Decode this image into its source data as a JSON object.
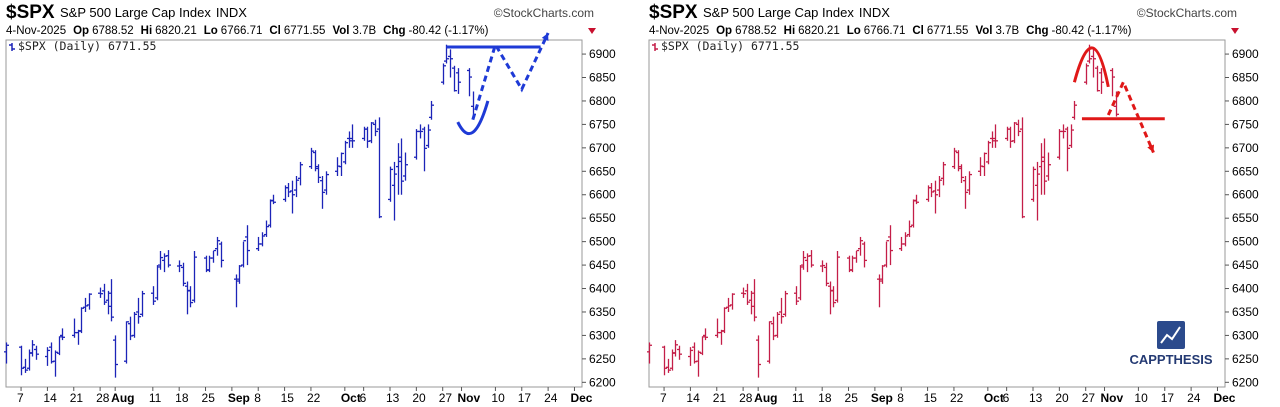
{
  "charts": [
    {
      "id": "left",
      "header": {
        "symbol": "$SPX",
        "name": "S&P 500 Large Cap Index",
        "exchange": "INDX",
        "source": "©StockCharts.com",
        "date": "4-Nov-2025",
        "op_label": "Op",
        "op": "6788.52",
        "hi_label": "Hi",
        "hi": "6820.21",
        "lo_label": "Lo",
        "lo": "6766.71",
        "cl_label": "Cl",
        "cl": "6771.55",
        "vol_label": "Vol",
        "vol": "3.7B",
        "chg_label": "Chg",
        "chg": "-80.42 (-1.17%)"
      },
      "legend": "$SPX (Daily) 6771.55",
      "bar_color": "#1c24b8",
      "annotation_color": "#1e3ad6",
      "annotations": {
        "resistance_level": 6915,
        "resistance_from": "2025-10-28",
        "resistance_to": "2025-11-22",
        "pattern": "cup",
        "cup_start": [
          "2025-10-31",
          6755
        ],
        "cup_bottom": [
          "2025-11-04",
          6740
        ],
        "cup_end": [
          "2025-11-08",
          6800
        ],
        "path": [
          [
            "2025-11-04",
            6760
          ],
          [
            "2025-11-10",
            6920
          ],
          [
            "2025-11-17",
            6825
          ],
          [
            "2025-11-24",
            6945
          ]
        ]
      }
    },
    {
      "id": "right",
      "header": {
        "symbol": "$SPX",
        "name": "S&P 500 Large Cap Index",
        "exchange": "INDX",
        "source": "©StockCharts.com",
        "date": "4-Nov-2025",
        "op_label": "Op",
        "op": "6788.52",
        "hi_label": "Hi",
        "hi": "6820.21",
        "lo_label": "Lo",
        "lo": "6766.71",
        "cl_label": "Cl",
        "cl": "6771.55",
        "vol_label": "Vol",
        "vol": "3.7B",
        "chg_label": "Chg",
        "chg": "-80.42 (-1.17%)"
      },
      "legend": "$SPX (Daily) 6771.55",
      "bar_color": "#c41e48",
      "annotation_color": "#e01818",
      "annotations": {
        "support_level": 6762,
        "support_from": "2025-10-26",
        "support_to": "2025-11-17",
        "pattern": "arch",
        "arch_start": [
          "2025-10-24",
          6840
        ],
        "arch_top": [
          "2025-10-29",
          6940
        ],
        "arch_end": [
          "2025-11-02",
          6830
        ],
        "path": [
          [
            "2025-11-02",
            6770
          ],
          [
            "2025-11-06",
            6840
          ],
          [
            "2025-11-14",
            6690
          ]
        ]
      },
      "logo": {
        "text": "CAPPTHESIS"
      }
    }
  ],
  "chart_data": {
    "type": "ohlc",
    "title": "$SPX S&P 500 Large Cap Index INDX",
    "series_label": "$SPX (Daily) 6771.55",
    "ylim": [
      6190,
      6930
    ],
    "y_ticks": [
      6200,
      6250,
      6300,
      6350,
      6400,
      6450,
      6500,
      6550,
      6600,
      6650,
      6700,
      6750,
      6800,
      6850,
      6900
    ],
    "x_range": [
      "2025-07-03",
      "2025-12-03"
    ],
    "x_ticks": [
      {
        "label": "7",
        "date": "2025-07-07",
        "month": false
      },
      {
        "label": "14",
        "date": "2025-07-14",
        "month": false
      },
      {
        "label": "21",
        "date": "2025-07-21",
        "month": false
      },
      {
        "label": "28",
        "date": "2025-07-28",
        "month": false
      },
      {
        "label": "Aug",
        "date": "2025-08-01",
        "month": true
      },
      {
        "label": "11",
        "date": "2025-08-11",
        "month": false
      },
      {
        "label": "18",
        "date": "2025-08-18",
        "month": false
      },
      {
        "label": "25",
        "date": "2025-08-25",
        "month": false
      },
      {
        "label": "Sep",
        "date": "2025-09-01",
        "month": true
      },
      {
        "label": "8",
        "date": "2025-09-08",
        "month": false
      },
      {
        "label": "15",
        "date": "2025-09-15",
        "month": false
      },
      {
        "label": "22",
        "date": "2025-09-22",
        "month": false
      },
      {
        "label": "Oct",
        "date": "2025-10-01",
        "month": true
      },
      {
        "label": "6",
        "date": "2025-10-06",
        "month": false
      },
      {
        "label": "13",
        "date": "2025-10-13",
        "month": false
      },
      {
        "label": "20",
        "date": "2025-10-20",
        "month": false
      },
      {
        "label": "27",
        "date": "2025-10-27",
        "month": false
      },
      {
        "label": "Nov",
        "date": "2025-11-01",
        "month": true
      },
      {
        "label": "10",
        "date": "2025-11-10",
        "month": false
      },
      {
        "label": "17",
        "date": "2025-11-17",
        "month": false
      },
      {
        "label": "24",
        "date": "2025-11-24",
        "month": false
      },
      {
        "label": "Dec",
        "date": "2025-12-01",
        "month": true
      }
    ],
    "bars": [
      [
        "2025-07-03",
        6265,
        6285,
        6240,
        6279
      ],
      [
        "2025-07-07",
        6275,
        6278,
        6215,
        6230
      ],
      [
        "2025-07-08",
        6232,
        6250,
        6220,
        6226
      ],
      [
        "2025-07-09",
        6230,
        6270,
        6225,
        6263
      ],
      [
        "2025-07-10",
        6262,
        6290,
        6255,
        6280
      ],
      [
        "2025-07-11",
        6270,
        6278,
        6248,
        6260
      ],
      [
        "2025-07-14",
        6255,
        6275,
        6235,
        6268
      ],
      [
        "2025-07-15",
        6275,
        6285,
        6240,
        6244
      ],
      [
        "2025-07-16",
        6245,
        6268,
        6212,
        6264
      ],
      [
        "2025-07-17",
        6262,
        6298,
        6258,
        6297
      ],
      [
        "2025-07-18",
        6300,
        6315,
        6290,
        6296
      ],
      [
        "2025-07-21",
        6300,
        6336,
        6295,
        6306
      ],
      [
        "2025-07-22",
        6306,
        6312,
        6280,
        6309
      ],
      [
        "2025-07-23",
        6310,
        6360,
        6305,
        6358
      ],
      [
        "2025-07-24",
        6360,
        6380,
        6350,
        6363
      ],
      [
        "2025-07-25",
        6365,
        6390,
        6355,
        6388
      ],
      [
        "2025-07-28",
        6390,
        6402,
        6380,
        6389
      ],
      [
        "2025-07-29",
        6395,
        6410,
        6365,
        6371
      ],
      [
        "2025-07-30",
        6375,
        6395,
        6345,
        6362
      ],
      [
        "2025-07-31",
        6390,
        6420,
        6330,
        6339
      ],
      [
        "2025-08-01",
        6290,
        6300,
        6210,
        6238
      ],
      [
        "2025-08-04",
        6245,
        6330,
        6240,
        6329
      ],
      [
        "2025-08-05",
        6325,
        6340,
        6290,
        6299
      ],
      [
        "2025-08-06",
        6300,
        6350,
        6295,
        6345
      ],
      [
        "2025-08-07",
        6350,
        6380,
        6325,
        6340
      ],
      [
        "2025-08-08",
        6345,
        6395,
        6340,
        6389
      ],
      [
        "2025-08-11",
        6390,
        6405,
        6365,
        6373
      ],
      [
        "2025-08-12",
        6380,
        6450,
        6375,
        6446
      ],
      [
        "2025-08-13",
        6450,
        6480,
        6440,
        6466
      ],
      [
        "2025-08-14",
        6460,
        6475,
        6435,
        6469
      ],
      [
        "2025-08-15",
        6470,
        6482,
        6445,
        6450
      ],
      [
        "2025-08-18",
        6448,
        6460,
        6435,
        6449
      ],
      [
        "2025-08-19",
        6445,
        6455,
        6405,
        6411
      ],
      [
        "2025-08-20",
        6405,
        6415,
        6345,
        6396
      ],
      [
        "2025-08-21",
        6395,
        6405,
        6360,
        6370
      ],
      [
        "2025-08-22",
        6375,
        6480,
        6370,
        6467
      ],
      [
        "2025-08-25",
        6465,
        6470,
        6435,
        6439
      ],
      [
        "2025-08-26",
        6440,
        6470,
        6435,
        6465
      ],
      [
        "2025-08-27",
        6465,
        6480,
        6455,
        6481
      ],
      [
        "2025-08-28",
        6485,
        6510,
        6470,
        6502
      ],
      [
        "2025-08-29",
        6495,
        6500,
        6445,
        6460
      ],
      [
        "2025-09-02",
        6420,
        6430,
        6360,
        6416
      ],
      [
        "2025-09-03",
        6420,
        6450,
        6410,
        6448
      ],
      [
        "2025-09-04",
        6450,
        6500,
        6445,
        6502
      ],
      [
        "2025-09-05",
        6510,
        6535,
        6450,
        6481
      ],
      [
        "2025-09-08",
        6485,
        6510,
        6480,
        6495
      ],
      [
        "2025-09-09",
        6495,
        6520,
        6490,
        6512
      ],
      [
        "2025-09-10",
        6515,
        6545,
        6510,
        6532
      ],
      [
        "2025-09-11",
        6535,
        6590,
        6530,
        6587
      ],
      [
        "2025-09-12",
        6588,
        6600,
        6580,
        6584
      ],
      [
        "2025-09-15",
        6590,
        6620,
        6585,
        6615
      ],
      [
        "2025-09-16",
        6615,
        6625,
        6595,
        6606
      ],
      [
        "2025-09-17",
        6608,
        6630,
        6560,
        6600
      ],
      [
        "2025-09-18",
        6610,
        6640,
        6595,
        6631
      ],
      [
        "2025-09-19",
        6635,
        6670,
        6620,
        6664
      ],
      [
        "2025-09-22",
        6660,
        6700,
        6655,
        6693
      ],
      [
        "2025-09-23",
        6690,
        6695,
        6650,
        6656
      ],
      [
        "2025-09-24",
        6660,
        6665,
        6625,
        6637
      ],
      [
        "2025-09-25",
        6630,
        6640,
        6570,
        6605
      ],
      [
        "2025-09-26",
        6610,
        6650,
        6600,
        6643
      ],
      [
        "2025-09-29",
        6650,
        6680,
        6640,
        6661
      ],
      [
        "2025-09-30",
        6660,
        6690,
        6640,
        6688
      ],
      [
        "2025-10-01",
        6670,
        6715,
        6665,
        6711
      ],
      [
        "2025-10-02",
        6720,
        6735,
        6700,
        6715
      ],
      [
        "2025-10-03",
        6720,
        6750,
        6700,
        6715
      ],
      [
        "2025-10-06",
        6720,
        6745,
        6715,
        6740
      ],
      [
        "2025-10-07",
        6740,
        6745,
        6700,
        6714
      ],
      [
        "2025-10-08",
        6715,
        6755,
        6710,
        6753
      ],
      [
        "2025-10-09",
        6750,
        6760,
        6725,
        6735
      ],
      [
        "2025-10-10",
        6740,
        6765,
        6550,
        6553
      ],
      [
        "2025-10-13",
        6590,
        6660,
        6585,
        6654
      ],
      [
        "2025-10-14",
        6620,
        6670,
        6545,
        6644
      ],
      [
        "2025-10-15",
        6660,
        6710,
        6600,
        6671
      ],
      [
        "2025-10-16",
        6680,
        6720,
        6600,
        6629
      ],
      [
        "2025-10-17",
        6640,
        6690,
        6630,
        6664
      ],
      [
        "2025-10-20",
        6680,
        6740,
        6675,
        6735
      ],
      [
        "2025-10-21",
        6735,
        6750,
        6720,
        6735
      ],
      [
        "2025-10-22",
        6740,
        6745,
        6650,
        6699
      ],
      [
        "2025-10-23",
        6705,
        6750,
        6700,
        6738
      ],
      [
        "2025-10-24",
        6765,
        6800,
        6760,
        6791
      ],
      [
        "2025-10-27",
        6840,
        6880,
        6835,
        6875
      ],
      [
        "2025-10-28",
        6885,
        6920,
        6880,
        6890
      ],
      [
        "2025-10-29",
        6895,
        6910,
        6850,
        6890
      ],
      [
        "2025-10-30",
        6870,
        6875,
        6820,
        6822
      ],
      [
        "2025-10-31",
        6860,
        6870,
        6815,
        6840
      ],
      [
        "2025-11-03",
        6865,
        6870,
        6810,
        6851
      ],
      [
        "2025-11-04",
        6788.52,
        6820.21,
        6766.71,
        6771.55
      ]
    ]
  }
}
